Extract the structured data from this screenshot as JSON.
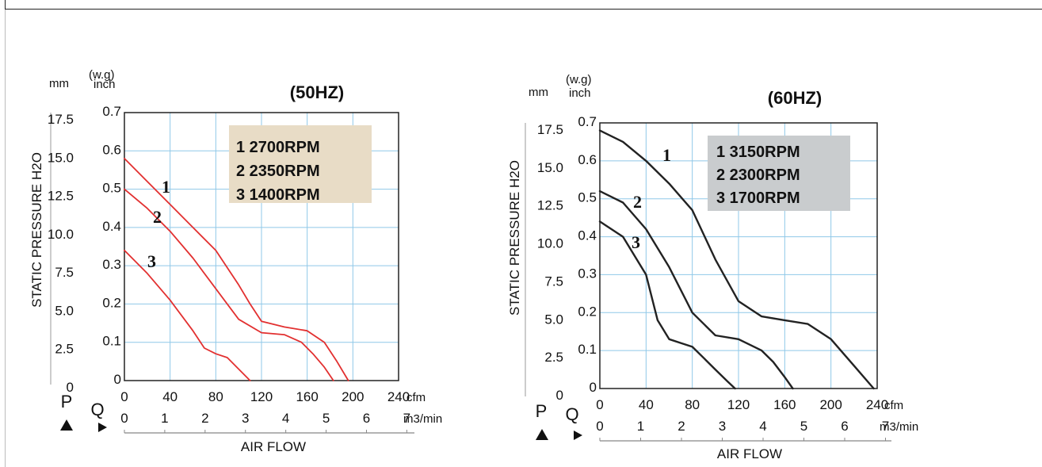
{
  "chart_data": [
    {
      "type": "line",
      "title": "(50HZ)",
      "y_units_mm": "mm",
      "y_units_inch_top": "(w.g)",
      "y_units_inch": "inch",
      "ylabel": "STATIC PRESSURE H2O",
      "xlabel": "AIR FLOW",
      "y_ticks_mm": [
        "17.5",
        "15.0",
        "12.5",
        "10.0",
        "7.5",
        "5.0",
        "2.5",
        "0"
      ],
      "y_ticks_inch": [
        "0.7",
        "0.6",
        "0.5",
        "0.4",
        "0.3",
        "0.2",
        "0.1",
        "0"
      ],
      "x_ticks_cfm": [
        "0",
        "40",
        "80",
        "120",
        "160",
        "200",
        "240"
      ],
      "x_unit_cfm": "cfm",
      "x_ticks_m3": [
        "0",
        "1",
        "2",
        "3",
        "4",
        "5",
        "6",
        "7"
      ],
      "x_unit_m3": "m3/min",
      "p_label": "P",
      "q_label": "Q",
      "xlim": [
        0,
        240
      ],
      "ylim": [
        0,
        0.7
      ],
      "grid": true,
      "curve_color": "#e23030",
      "legend_bg": "#e8dcc6",
      "legend": [
        "1 2700RPM",
        "2 2350RPM",
        "3 1400RPM"
      ],
      "series": [
        {
          "name": "1",
          "x": [
            0,
            20,
            40,
            60,
            80,
            100,
            110,
            120,
            140,
            160,
            175,
            186,
            196
          ],
          "y": [
            0.58,
            0.52,
            0.46,
            0.4,
            0.34,
            0.25,
            0.2,
            0.155,
            0.14,
            0.13,
            0.1,
            0.05,
            0.0
          ]
        },
        {
          "name": "2",
          "x": [
            0,
            20,
            40,
            60,
            80,
            100,
            120,
            140,
            155,
            165,
            175,
            183
          ],
          "y": [
            0.5,
            0.45,
            0.39,
            0.32,
            0.24,
            0.16,
            0.125,
            0.12,
            0.1,
            0.07,
            0.035,
            0.0
          ]
        },
        {
          "name": "3",
          "x": [
            0,
            20,
            40,
            60,
            70,
            80,
            90,
            100,
            110
          ],
          "y": [
            0.34,
            0.28,
            0.21,
            0.13,
            0.085,
            0.07,
            0.06,
            0.03,
            0.0
          ]
        }
      ]
    },
    {
      "type": "line",
      "title": "(60HZ)",
      "y_units_mm": "mm",
      "y_units_inch_top": "(w.g)",
      "y_units_inch": "inch",
      "ylabel": "STATIC PRESSURE H2O",
      "xlabel": "AIR FLOW",
      "y_ticks_mm": [
        "17.5",
        "15.0",
        "12.5",
        "10.0",
        "7.5",
        "5.0",
        "2.5",
        "0"
      ],
      "y_ticks_inch": [
        "0.7",
        "0.6",
        "0.5",
        "0.4",
        "0.3",
        "0.2",
        "0.1",
        "0"
      ],
      "x_ticks_cfm": [
        "0",
        "40",
        "80",
        "120",
        "160",
        "200",
        "240"
      ],
      "x_unit_cfm": "cfm",
      "x_ticks_m3": [
        "0",
        "1",
        "2",
        "3",
        "4",
        "5",
        "6",
        "7"
      ],
      "x_unit_m3": "m3/min",
      "p_label": "P",
      "q_label": "Q",
      "xlim": [
        0,
        240
      ],
      "ylim": [
        0,
        0.7
      ],
      "grid": true,
      "curve_color": "#222222",
      "legend_bg": "#c9ccce",
      "legend": [
        "1 3150RPM",
        "2 2300RPM",
        "3 1700RPM"
      ],
      "series": [
        {
          "name": "1",
          "x": [
            0,
            20,
            40,
            60,
            80,
            100,
            120,
            140,
            160,
            180,
            200,
            220,
            237
          ],
          "y": [
            0.68,
            0.65,
            0.6,
            0.54,
            0.47,
            0.34,
            0.23,
            0.19,
            0.18,
            0.17,
            0.13,
            0.06,
            0.0
          ]
        },
        {
          "name": "2",
          "x": [
            0,
            20,
            40,
            60,
            80,
            100,
            120,
            140,
            150,
            160,
            167
          ],
          "y": [
            0.52,
            0.49,
            0.42,
            0.32,
            0.2,
            0.14,
            0.13,
            0.1,
            0.07,
            0.03,
            0.0
          ]
        },
        {
          "name": "3",
          "x": [
            0,
            20,
            40,
            50,
            60,
            70,
            80,
            90,
            100,
            110,
            117
          ],
          "y": [
            0.44,
            0.4,
            0.3,
            0.18,
            0.13,
            0.12,
            0.11,
            0.08,
            0.05,
            0.02,
            0.0
          ]
        }
      ]
    }
  ]
}
